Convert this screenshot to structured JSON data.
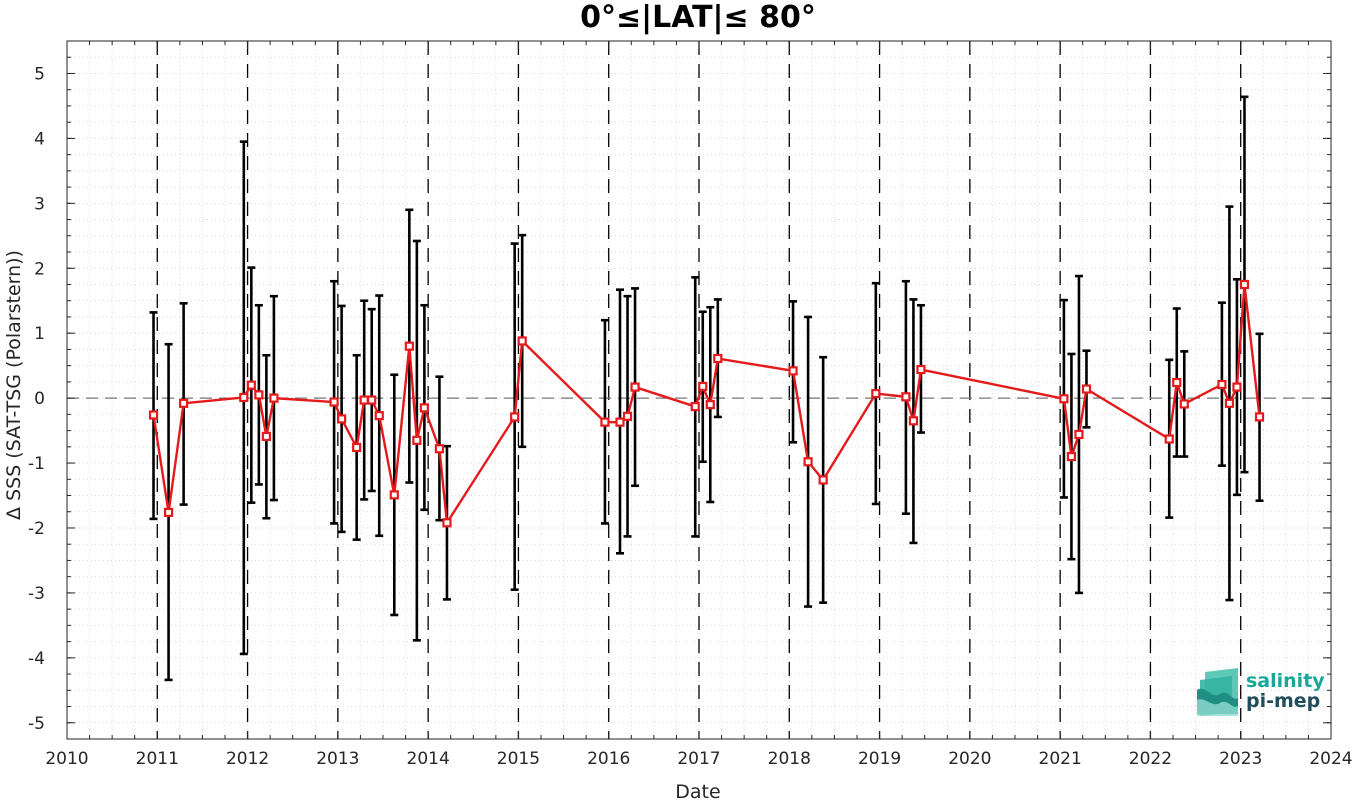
{
  "chart_data": {
    "type": "line",
    "title": "0°≤|LAT|≤ 80°",
    "xlabel": "Date",
    "ylabel": "Δ SSS (SAT-TSG (Polarstern))",
    "xlim": [
      2010,
      2024
    ],
    "ylim": [
      -5.25,
      5.5
    ],
    "x_ticks": [
      2010,
      2011,
      2012,
      2013,
      2014,
      2015,
      2016,
      2017,
      2018,
      2019,
      2020,
      2021,
      2022,
      2023,
      2024
    ],
    "x_tick_labels": [
      "2010",
      "2011",
      "2012",
      "2013",
      "2014",
      "2015",
      "2016",
      "2017",
      "2018",
      "2019",
      "2020",
      "2021",
      "2022",
      "2023",
      "2024"
    ],
    "y_ticks": [
      -5,
      -4,
      -3,
      -2,
      -1,
      0,
      1,
      2,
      3,
      4,
      5
    ],
    "y_tick_labels": [
      "-5",
      "-4",
      "-3",
      "-2",
      "-1",
      "0",
      "1",
      "2",
      "3",
      "4",
      "5"
    ],
    "grid": "minor dotted",
    "year_separators": "dashed vertical lines at year starts",
    "zero_line": "dashed horizontal at 0",
    "series": [
      {
        "style": "red line with square markers and black error bars",
        "color": "#e41a1c",
        "errorbar_color": "#000000",
        "points": [
          {
            "x": "2010-12",
            "y": -0.26,
            "lo": -1.86,
            "hi": 1.32
          },
          {
            "x": "2011-02",
            "y": -1.76,
            "lo": -4.34,
            "hi": 0.83
          },
          {
            "x": "2011-04",
            "y": -0.08,
            "lo": -1.64,
            "hi": 1.46
          },
          {
            "x": "2011-12",
            "y": 0.01,
            "lo": -3.94,
            "hi": 3.95
          },
          {
            "x": "2012-01",
            "y": 0.2,
            "lo": -1.61,
            "hi": 2.01
          },
          {
            "x": "2012-02",
            "y": 0.05,
            "lo": -1.33,
            "hi": 1.43
          },
          {
            "x": "2012-03",
            "y": -0.59,
            "lo": -1.85,
            "hi": 0.66
          },
          {
            "x": "2012-04",
            "y": 0.0,
            "lo": -1.57,
            "hi": 1.57
          },
          {
            "x": "2012-12",
            "y": -0.06,
            "lo": -1.93,
            "hi": 1.8
          },
          {
            "x": "2013-01",
            "y": -0.32,
            "lo": -2.06,
            "hi": 1.42
          },
          {
            "x": "2013-03",
            "y": -0.76,
            "lo": -2.18,
            "hi": 0.66
          },
          {
            "x": "2013-04",
            "y": -0.03,
            "lo": -1.56,
            "hi": 1.5
          },
          {
            "x": "2013-05",
            "y": -0.03,
            "lo": -1.43,
            "hi": 1.37
          },
          {
            "x": "2013-06",
            "y": -0.27,
            "lo": -2.12,
            "hi": 1.58
          },
          {
            "x": "2013-08",
            "y": -1.49,
            "lo": -3.34,
            "hi": 0.36
          },
          {
            "x": "2013-10",
            "y": 0.8,
            "lo": -1.3,
            "hi": 2.9
          },
          {
            "x": "2013-11",
            "y": -0.65,
            "lo": -3.73,
            "hi": 2.42
          },
          {
            "x": "2013-12",
            "y": -0.15,
            "lo": -1.72,
            "hi": 1.43
          },
          {
            "x": "2014-02",
            "y": -0.78,
            "lo": -1.88,
            "hi": 0.33
          },
          {
            "x": "2014-03",
            "y": -1.92,
            "lo": -3.1,
            "hi": -0.74
          },
          {
            "x": "2014-12",
            "y": -0.29,
            "lo": -2.95,
            "hi": 2.38
          },
          {
            "x": "2015-01",
            "y": 0.88,
            "lo": -0.75,
            "hi": 2.51
          },
          {
            "x": "2015-12",
            "y": -0.37,
            "lo": -1.93,
            "hi": 1.2
          },
          {
            "x": "2016-02",
            "y": -0.37,
            "lo": -2.39,
            "hi": 1.67
          },
          {
            "x": "2016-03",
            "y": -0.28,
            "lo": -2.13,
            "hi": 1.57
          },
          {
            "x": "2016-04",
            "y": 0.17,
            "lo": -1.35,
            "hi": 1.69
          },
          {
            "x": "2016-12",
            "y": -0.13,
            "lo": -2.13,
            "hi": 1.86
          },
          {
            "x": "2017-01",
            "y": 0.18,
            "lo": -0.98,
            "hi": 1.33
          },
          {
            "x": "2017-02",
            "y": -0.1,
            "lo": -1.6,
            "hi": 1.4
          },
          {
            "x": "2017-03",
            "y": 0.61,
            "lo": -0.29,
            "hi": 1.52
          },
          {
            "x": "2018-01",
            "y": 0.42,
            "lo": -0.68,
            "hi": 1.49
          },
          {
            "x": "2018-03",
            "y": -0.98,
            "lo": -3.21,
            "hi": 1.25
          },
          {
            "x": "2018-05",
            "y": -1.26,
            "lo": -3.15,
            "hi": 0.63
          },
          {
            "x": "2018-12",
            "y": 0.07,
            "lo": -1.63,
            "hi": 1.77
          },
          {
            "x": "2019-04",
            "y": 0.02,
            "lo": -1.78,
            "hi": 1.8
          },
          {
            "x": "2019-05",
            "y": -0.35,
            "lo": -2.23,
            "hi": 1.52
          },
          {
            "x": "2019-06",
            "y": 0.44,
            "lo": -0.53,
            "hi": 1.43
          },
          {
            "x": "2021-01",
            "y": -0.01,
            "lo": -1.53,
            "hi": 1.51
          },
          {
            "x": "2021-02",
            "y": -0.9,
            "lo": -2.48,
            "hi": 0.68
          },
          {
            "x": "2021-03",
            "y": -0.56,
            "lo": -3.0,
            "hi": 1.88
          },
          {
            "x": "2021-04",
            "y": 0.14,
            "lo": -0.45,
            "hi": 0.73
          },
          {
            "x": "2022-03",
            "y": -0.63,
            "lo": -1.84,
            "hi": 0.59
          },
          {
            "x": "2022-04",
            "y": 0.24,
            "lo": -0.9,
            "hi": 1.38
          },
          {
            "x": "2022-05",
            "y": -0.09,
            "lo": -0.9,
            "hi": 0.72
          },
          {
            "x": "2022-10",
            "y": 0.21,
            "lo": -1.04,
            "hi": 1.47
          },
          {
            "x": "2022-11",
            "y": -0.08,
            "lo": -3.11,
            "hi": 2.95
          },
          {
            "x": "2022-12",
            "y": 0.17,
            "lo": -1.49,
            "hi": 1.83
          },
          {
            "x": "2023-01",
            "y": 1.75,
            "lo": -1.14,
            "hi": 4.64
          },
          {
            "x": "2023-03",
            "y": -0.29,
            "lo": -1.58,
            "hi": 0.99
          }
        ]
      }
    ]
  },
  "logo": {
    "line1": "salinity",
    "line2": "pi-mep",
    "color": "#1aa79a",
    "dark_color": "#1f4d5c"
  }
}
